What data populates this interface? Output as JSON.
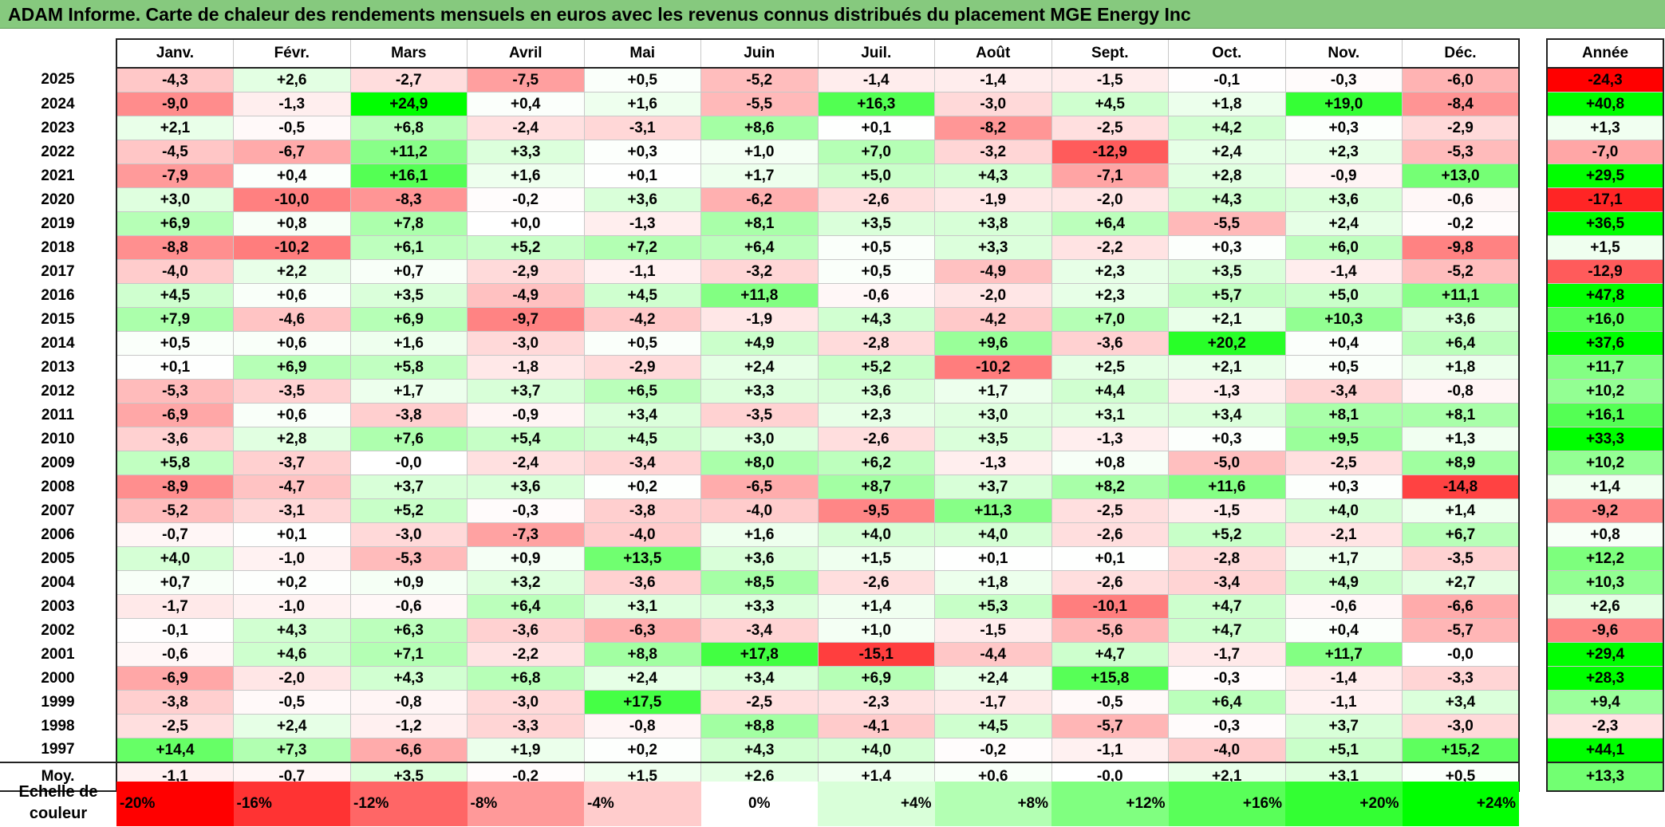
{
  "title": "ADAM Informe. Carte de chaleur des rendements mensuels en euros avec les revenus connus distribués du placement MGE Energy Inc",
  "chart_data": {
    "type": "heatmap",
    "columns": [
      "Janv.",
      "Févr.",
      "Mars",
      "Avril",
      "Mai",
      "Juin",
      "Juil.",
      "Août",
      "Sept.",
      "Oct.",
      "Nov.",
      "Déc."
    ],
    "annual_label": "Année",
    "rows": [
      {
        "year": "2025",
        "values": [
          "-4,3",
          "+2,6",
          "-2,7",
          "-7,5",
          "+0,5",
          "-5,2",
          "-1,4",
          "-1,4",
          "-1,5",
          "-0,1",
          "-0,3",
          "-6,0"
        ],
        "annual": "-24,3"
      },
      {
        "year": "2024",
        "values": [
          "-9,0",
          "-1,3",
          "+24,9",
          "+0,4",
          "+1,6",
          "-5,5",
          "+16,3",
          "-3,0",
          "+4,5",
          "+1,8",
          "+19,0",
          "-8,4"
        ],
        "annual": "+40,8"
      },
      {
        "year": "2023",
        "values": [
          "+2,1",
          "-0,5",
          "+6,8",
          "-2,4",
          "-3,1",
          "+8,6",
          "+0,1",
          "-8,2",
          "-2,5",
          "+4,2",
          "+0,3",
          "-2,9"
        ],
        "annual": "+1,3"
      },
      {
        "year": "2022",
        "values": [
          "-4,5",
          "-6,7",
          "+11,2",
          "+3,3",
          "+0,3",
          "+1,0",
          "+7,0",
          "-3,2",
          "-12,9",
          "+2,4",
          "+2,3",
          "-5,3"
        ],
        "annual": "-7,0"
      },
      {
        "year": "2021",
        "values": [
          "-7,9",
          "+0,4",
          "+16,1",
          "+1,6",
          "+0,1",
          "+1,7",
          "+5,0",
          "+4,3",
          "-7,1",
          "+2,8",
          "-0,9",
          "+13,0"
        ],
        "annual": "+29,5"
      },
      {
        "year": "2020",
        "values": [
          "+3,0",
          "-10,0",
          "-8,3",
          "-0,2",
          "+3,6",
          "-6,2",
          "-2,6",
          "-1,9",
          "-2,0",
          "+4,3",
          "+3,6",
          "-0,6"
        ],
        "annual": "-17,1"
      },
      {
        "year": "2019",
        "values": [
          "+6,9",
          "+0,8",
          "+7,8",
          "+0,0",
          "-1,3",
          "+8,1",
          "+3,5",
          "+3,8",
          "+6,4",
          "-5,5",
          "+2,4",
          "-0,2"
        ],
        "annual": "+36,5"
      },
      {
        "year": "2018",
        "values": [
          "-8,8",
          "-10,2",
          "+6,1",
          "+5,2",
          "+7,2",
          "+6,4",
          "+0,5",
          "+3,3",
          "-2,2",
          "+0,3",
          "+6,0",
          "-9,8"
        ],
        "annual": "+1,5"
      },
      {
        "year": "2017",
        "values": [
          "-4,0",
          "+2,2",
          "+0,7",
          "-2,9",
          "-1,1",
          "-3,2",
          "+0,5",
          "-4,9",
          "+2,3",
          "+3,5",
          "-1,4",
          "-5,2"
        ],
        "annual": "-12,9"
      },
      {
        "year": "2016",
        "values": [
          "+4,5",
          "+0,6",
          "+3,5",
          "-4,9",
          "+4,5",
          "+11,8",
          "-0,6",
          "-2,0",
          "+2,3",
          "+5,7",
          "+5,0",
          "+11,1"
        ],
        "annual": "+47,8"
      },
      {
        "year": "2015",
        "values": [
          "+7,9",
          "-4,6",
          "+6,9",
          "-9,7",
          "-4,2",
          "-1,9",
          "+4,3",
          "-4,2",
          "+7,0",
          "+2,1",
          "+10,3",
          "+3,6"
        ],
        "annual": "+16,0"
      },
      {
        "year": "2014",
        "values": [
          "+0,5",
          "+0,6",
          "+1,6",
          "-3,0",
          "+0,5",
          "+4,9",
          "-2,8",
          "+9,6",
          "-3,6",
          "+20,2",
          "+0,4",
          "+6,4"
        ],
        "annual": "+37,6"
      },
      {
        "year": "2013",
        "values": [
          "+0,1",
          "+6,9",
          "+5,8",
          "-1,8",
          "-2,9",
          "+2,4",
          "+5,2",
          "-10,2",
          "+2,5",
          "+2,1",
          "+0,5",
          "+1,8"
        ],
        "annual": "+11,7"
      },
      {
        "year": "2012",
        "values": [
          "-5,3",
          "-3,5",
          "+1,7",
          "+3,7",
          "+6,5",
          "+3,3",
          "+3,6",
          "+1,7",
          "+4,4",
          "-1,3",
          "-3,4",
          "-0,8"
        ],
        "annual": "+10,2"
      },
      {
        "year": "2011",
        "values": [
          "-6,9",
          "+0,6",
          "-3,8",
          "-0,9",
          "+3,4",
          "-3,5",
          "+2,3",
          "+3,0",
          "+3,1",
          "+3,4",
          "+8,1",
          "+8,1"
        ],
        "annual": "+16,1"
      },
      {
        "year": "2010",
        "values": [
          "-3,6",
          "+2,8",
          "+7,6",
          "+5,4",
          "+4,5",
          "+3,0",
          "-2,6",
          "+3,5",
          "-1,3",
          "+0,3",
          "+9,5",
          "+1,3"
        ],
        "annual": "+33,3"
      },
      {
        "year": "2009",
        "values": [
          "+5,8",
          "-3,7",
          "-0,0",
          "-2,4",
          "-3,4",
          "+8,0",
          "+6,2",
          "-1,3",
          "+0,8",
          "-5,0",
          "-2,5",
          "+8,9"
        ],
        "annual": "+10,2"
      },
      {
        "year": "2008",
        "values": [
          "-8,9",
          "-4,7",
          "+3,7",
          "+3,6",
          "+0,2",
          "-6,5",
          "+8,7",
          "+3,7",
          "+8,2",
          "+11,6",
          "+0,3",
          "-14,8"
        ],
        "annual": "+1,4"
      },
      {
        "year": "2007",
        "values": [
          "-5,2",
          "-3,1",
          "+5,2",
          "-0,3",
          "-3,8",
          "-4,0",
          "-9,5",
          "+11,3",
          "-2,5",
          "-1,5",
          "+4,0",
          "+1,4"
        ],
        "annual": "-9,2"
      },
      {
        "year": "2006",
        "values": [
          "-0,7",
          "+0,1",
          "-3,0",
          "-7,3",
          "-4,0",
          "+1,6",
          "+4,0",
          "+4,0",
          "-2,6",
          "+5,2",
          "-2,1",
          "+6,7"
        ],
        "annual": "+0,8"
      },
      {
        "year": "2005",
        "values": [
          "+4,0",
          "-1,0",
          "-5,3",
          "+0,9",
          "+13,5",
          "+3,6",
          "+1,5",
          "+0,1",
          "+0,1",
          "-2,8",
          "+1,7",
          "-3,5"
        ],
        "annual": "+12,2"
      },
      {
        "year": "2004",
        "values": [
          "+0,7",
          "+0,2",
          "+0,9",
          "+3,2",
          "-3,6",
          "+8,5",
          "-2,6",
          "+1,8",
          "-2,6",
          "-3,4",
          "+4,9",
          "+2,7"
        ],
        "annual": "+10,3"
      },
      {
        "year": "2003",
        "values": [
          "-1,7",
          "-1,0",
          "-0,6",
          "+6,4",
          "+3,1",
          "+3,3",
          "+1,4",
          "+5,3",
          "-10,1",
          "+4,7",
          "-0,6",
          "-6,6"
        ],
        "annual": "+2,6"
      },
      {
        "year": "2002",
        "values": [
          "-0,1",
          "+4,3",
          "+6,3",
          "-3,6",
          "-6,3",
          "-3,4",
          "+1,0",
          "-1,5",
          "-5,6",
          "+4,7",
          "+0,4",
          "-5,7"
        ],
        "annual": "-9,6"
      },
      {
        "year": "2001",
        "values": [
          "-0,6",
          "+4,6",
          "+7,1",
          "-2,2",
          "+8,8",
          "+17,8",
          "-15,1",
          "-4,4",
          "+4,7",
          "-1,7",
          "+11,7",
          "-0,0"
        ],
        "annual": "+29,4"
      },
      {
        "year": "2000",
        "values": [
          "-6,9",
          "-2,0",
          "+4,3",
          "+6,8",
          "+2,4",
          "+3,4",
          "+6,9",
          "+2,4",
          "+15,8",
          "-0,3",
          "-1,4",
          "-3,3"
        ],
        "annual": "+28,3"
      },
      {
        "year": "1999",
        "values": [
          "-3,8",
          "-0,5",
          "-0,8",
          "-3,0",
          "+17,5",
          "-2,5",
          "-2,3",
          "-1,7",
          "-0,5",
          "+6,4",
          "-1,1",
          "+3,4"
        ],
        "annual": "+9,4"
      },
      {
        "year": "1998",
        "values": [
          "-2,5",
          "+2,4",
          "-1,2",
          "-3,3",
          "-0,8",
          "+8,8",
          "-4,1",
          "+4,5",
          "-5,7",
          "-0,3",
          "+3,7",
          "-3,0"
        ],
        "annual": "-2,3"
      },
      {
        "year": "1997",
        "values": [
          "+14,4",
          "+7,3",
          "-6,6",
          "+1,9",
          "+0,2",
          "+4,3",
          "+4,0",
          "-0,2",
          "-1,1",
          "-4,0",
          "+5,1",
          "+15,2"
        ],
        "annual": "+44,1"
      }
    ],
    "average": {
      "label": "Moy.",
      "values": [
        "-1,1",
        "-0,7",
        "+3,5",
        "-0,2",
        "+1,5",
        "+2,6",
        "+1,4",
        "+0,6",
        "-0,0",
        "+2,1",
        "+3,1",
        "+0,5"
      ],
      "annual": "+13,3"
    },
    "scale": {
      "label": "Echelle de couleur",
      "steps": [
        "-20%",
        "-16%",
        "-12%",
        "-8%",
        "-4%",
        "0%",
        "+4%",
        "+8%",
        "+12%",
        "+16%",
        "+20%",
        "+24%"
      ],
      "colors": [
        "#ff0000",
        "#ff3333",
        "#ff6666",
        "#ff9999",
        "#ffcccc",
        "#ffffff",
        "#d9ffd9",
        "#b3ffb3",
        "#80ff80",
        "#59ff59",
        "#33ff33",
        "#00ff00"
      ]
    },
    "color_scale": {
      "negative_max": -20,
      "positive_max": 24,
      "neutral": "#ffffff",
      "negative": "#ff0000",
      "positive": "#00ff00"
    }
  }
}
